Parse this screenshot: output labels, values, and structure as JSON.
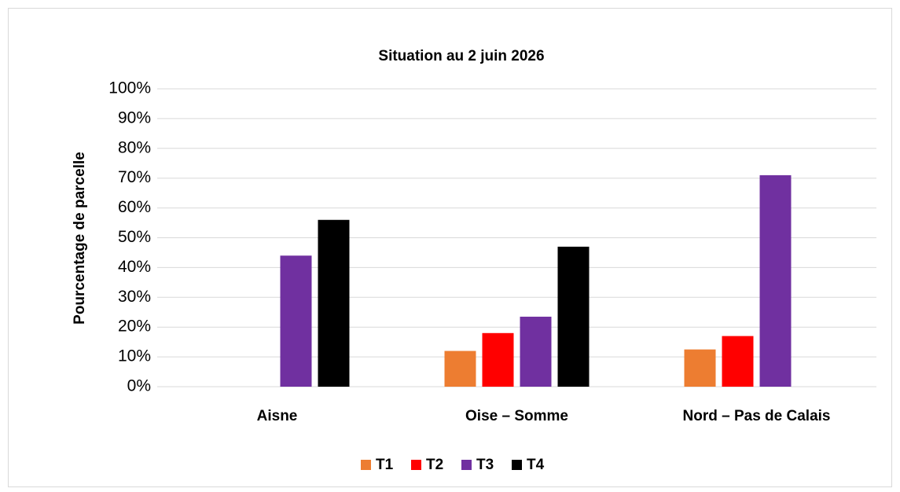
{
  "chart_data": {
    "type": "bar",
    "title": "Situation au 2 juin 2026",
    "y_label": "Pourcentage de parcelle",
    "categories": [
      "Aisne",
      "Oise – Somme",
      "Nord – Pas de Calais"
    ],
    "series": [
      {
        "name": "T1",
        "color": "#ed7d31",
        "values": [
          0,
          12,
          12.5
        ]
      },
      {
        "name": "T2",
        "color": "#ff0000",
        "values": [
          0,
          18,
          17
        ]
      },
      {
        "name": "T3",
        "color": "#7030a0",
        "values": [
          44,
          23.5,
          71
        ]
      },
      {
        "name": "T4",
        "color": "#000000",
        "values": [
          56,
          47,
          0
        ]
      }
    ],
    "ylim": [
      0,
      100
    ],
    "yticks": [
      {
        "value": 0,
        "label": "0%"
      },
      {
        "value": 10,
        "label": "10%"
      },
      {
        "value": 20,
        "label": "20%"
      },
      {
        "value": 30,
        "label": "30%"
      },
      {
        "value": 40,
        "label": "40%"
      },
      {
        "value": 50,
        "label": "50%"
      },
      {
        "value": 60,
        "label": "60%"
      },
      {
        "value": 70,
        "label": "70%"
      },
      {
        "value": 80,
        "label": "80%"
      },
      {
        "value": 90,
        "label": "90%"
      },
      {
        "value": 100,
        "label": "100%"
      }
    ],
    "grid": true,
    "legend": "bottom"
  }
}
